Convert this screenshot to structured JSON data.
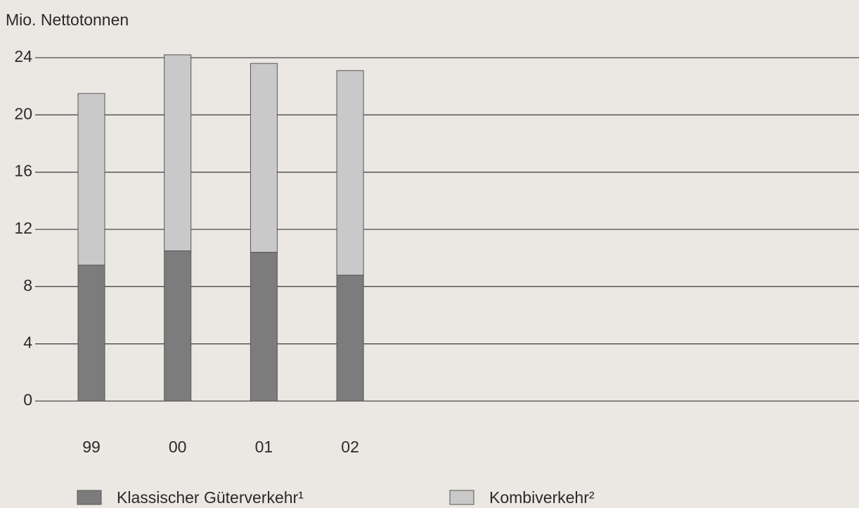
{
  "chart_data": {
    "type": "stacked-bar",
    "y_label": "Mio. Nettotonnen",
    "categories": [
      "99",
      "00",
      "01",
      "02"
    ],
    "series": [
      {
        "name": "Klassischer Güterverkehr¹",
        "color": "#7c7c7c",
        "values": [
          9.5,
          10.5,
          10.4,
          8.8
        ]
      },
      {
        "name": "Kombiverkehr²",
        "color": "#c9c9c9",
        "values": [
          12.0,
          13.7,
          13.2,
          14.3
        ]
      }
    ],
    "ylim": [
      0,
      24
    ],
    "yticks": [
      0,
      4,
      8,
      12,
      16,
      20,
      24
    ],
    "grid": true,
    "legend": "bottom"
  }
}
